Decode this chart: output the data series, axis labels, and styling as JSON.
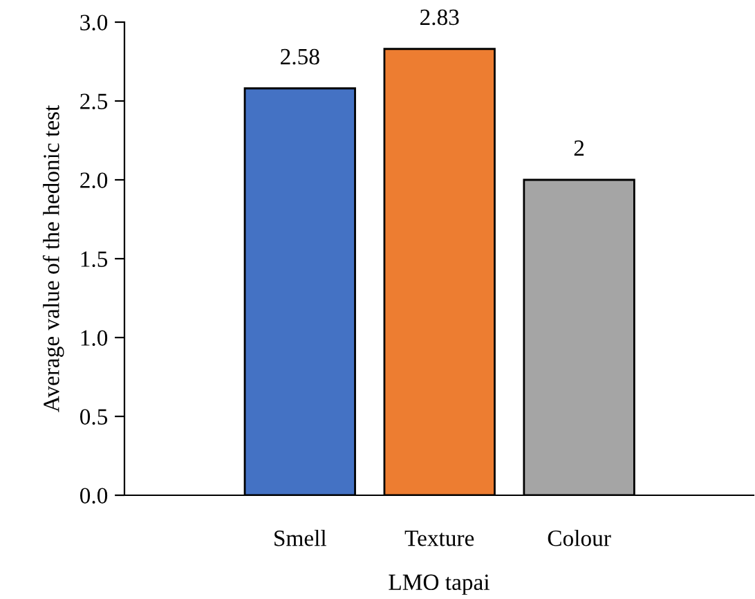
{
  "chart_data": {
    "type": "bar",
    "xlabel": "LMO tapai",
    "ylabel": "Average value of the hedonic test",
    "categories": [
      "Smell",
      "Texture",
      "Colour"
    ],
    "values": [
      2.58,
      2.83,
      2
    ],
    "colors": [
      "#4472c4",
      "#ed7d31",
      "#a5a5a5"
    ],
    "ylim": [
      0,
      3.0
    ],
    "yticks": [
      {
        "value": 0,
        "label": "0.0"
      },
      {
        "value": 0.5,
        "label": "0.5"
      },
      {
        "value": 1,
        "label": "1.0"
      },
      {
        "value": 1.5,
        "label": "1.5"
      },
      {
        "value": 2,
        "label": "2.0"
      },
      {
        "value": 2.5,
        "label": "2.5"
      },
      {
        "value": 3,
        "label": "3.0"
      }
    ],
    "value_labels": [
      "2.58",
      "2.83",
      "2"
    ],
    "grid": false,
    "legend": false
  }
}
